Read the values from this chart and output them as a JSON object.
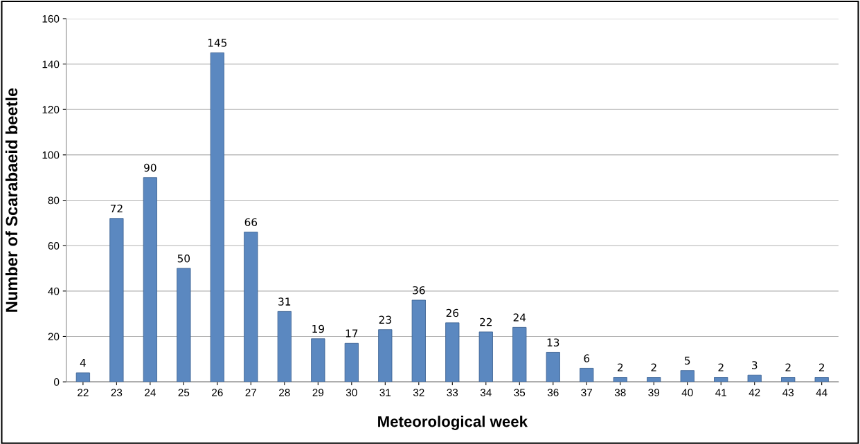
{
  "chart_data": {
    "type": "bar",
    "xlabel": "Meteorological week",
    "ylabel": "Number of Scarabaeid beetle",
    "categories": [
      "22",
      "23",
      "24",
      "25",
      "26",
      "27",
      "28",
      "29",
      "30",
      "31",
      "32",
      "33",
      "34",
      "35",
      "36",
      "37",
      "38",
      "39",
      "40",
      "41",
      "42",
      "43",
      "44"
    ],
    "values": [
      4,
      72,
      90,
      50,
      145,
      66,
      31,
      19,
      17,
      23,
      36,
      26,
      22,
      24,
      13,
      6,
      2,
      2,
      5,
      2,
      3,
      2,
      2
    ],
    "color": "#5b88c0",
    "ylim": [
      0,
      160
    ],
    "yticks": [
      0,
      20,
      40,
      60,
      80,
      100,
      120,
      140,
      160
    ],
    "grid": "y",
    "data_labels": true
  }
}
